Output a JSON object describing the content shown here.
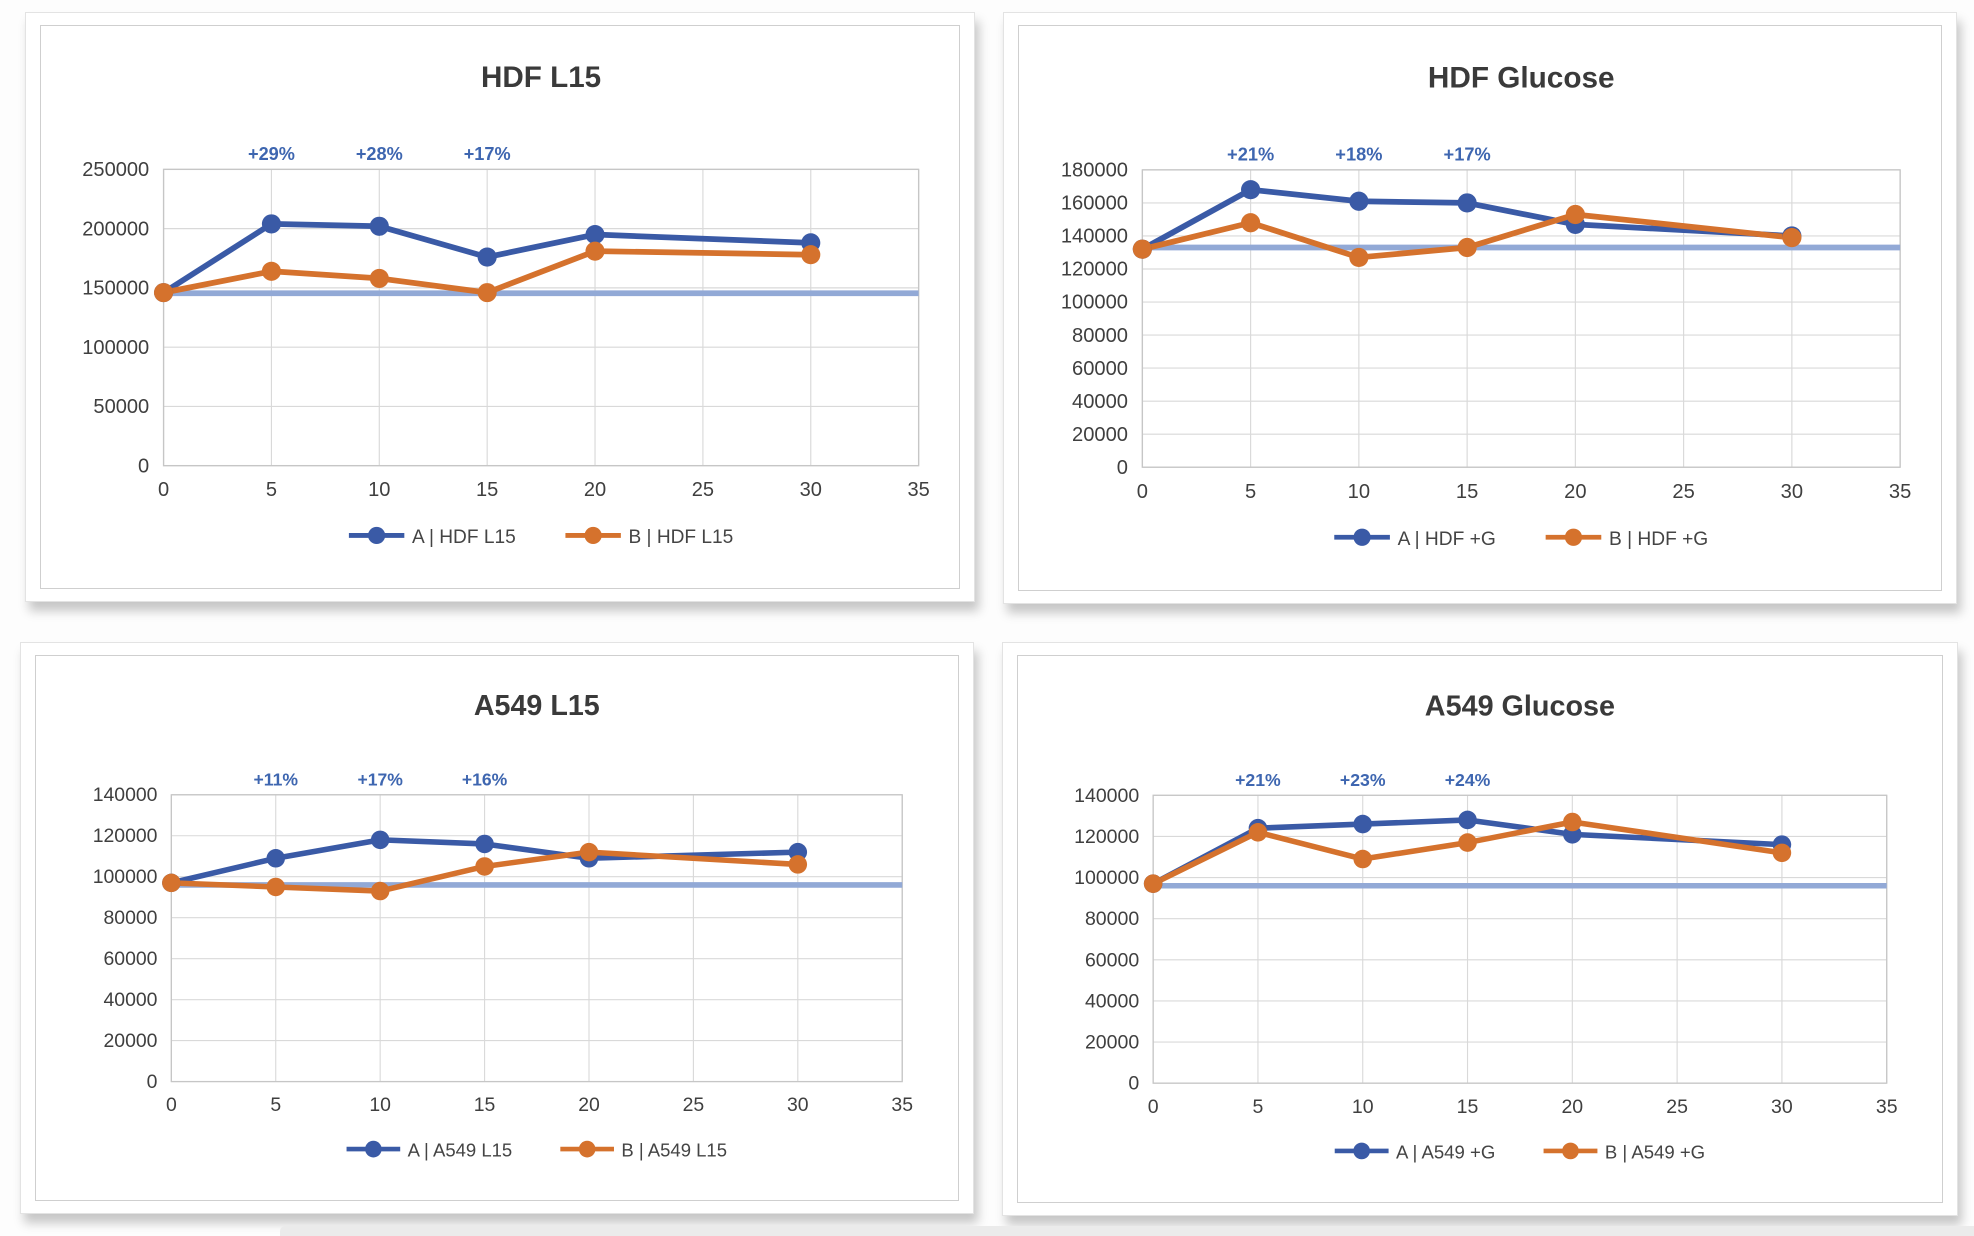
{
  "colors": {
    "series_a": "#3a5aa6",
    "series_b": "#d5722d",
    "baseline": "#92a9d6",
    "annotation": "#3e66b0",
    "title": "#3a3a3a",
    "axis_label": "#3f3f3f",
    "legend_label": "#444444",
    "gridline": "#d9d9d9",
    "plot_border": "#c6c6c6"
  },
  "chart_data": [
    {
      "type": "line",
      "title": "HDF L15",
      "x": [
        0,
        5,
        10,
        15,
        20,
        30
      ],
      "xlim": [
        0,
        35
      ],
      "xtick_step": 5,
      "ylim": [
        0,
        250000
      ],
      "ytick_step": 50000,
      "grid": true,
      "legend_position": "bottom",
      "baseline": 145500,
      "series": [
        {
          "name": "A | HDF L15",
          "color_key": "series_a",
          "values": [
            146000,
            204000,
            202000,
            176000,
            195000,
            188000
          ]
        },
        {
          "name": "B | HDF L15",
          "color_key": "series_b",
          "values": [
            146000,
            164000,
            158000,
            146000,
            181000,
            178000
          ]
        }
      ],
      "annotations": [
        {
          "x": 5,
          "label": "+29%"
        },
        {
          "x": 10,
          "label": "+28%"
        },
        {
          "x": 15,
          "label": "+17%"
        }
      ]
    },
    {
      "type": "line",
      "title": "HDF Glucose",
      "x": [
        0,
        5,
        10,
        15,
        20,
        30
      ],
      "xlim": [
        0,
        35
      ],
      "xtick_step": 5,
      "ylim": [
        0,
        180000
      ],
      "ytick_step": 20000,
      "grid": true,
      "legend_position": "bottom",
      "baseline": 133000,
      "series": [
        {
          "name": "A | HDF +G",
          "color_key": "series_a",
          "values": [
            132000,
            168000,
            161000,
            160000,
            147000,
            140000
          ]
        },
        {
          "name": "B | HDF +G",
          "color_key": "series_b",
          "values": [
            132000,
            148000,
            127000,
            133000,
            153000,
            139000
          ]
        }
      ],
      "annotations": [
        {
          "x": 5,
          "label": "+21%"
        },
        {
          "x": 10,
          "label": "+18%"
        },
        {
          "x": 15,
          "label": "+17%"
        }
      ]
    },
    {
      "type": "line",
      "title": "A549 L15",
      "x": [
        0,
        5,
        10,
        15,
        20,
        30
      ],
      "xlim": [
        0,
        35
      ],
      "xtick_step": 5,
      "ylim": [
        0,
        140000
      ],
      "ytick_step": 20000,
      "grid": true,
      "legend_position": "bottom",
      "baseline": 96000,
      "series": [
        {
          "name": "A | A549 L15",
          "color_key": "series_a",
          "values": [
            97000,
            109000,
            118000,
            116000,
            109000,
            112000
          ]
        },
        {
          "name": "B | A549 L15",
          "color_key": "series_b",
          "values": [
            97000,
            95000,
            93000,
            105000,
            112000,
            106000
          ]
        }
      ],
      "annotations": [
        {
          "x": 5,
          "label": "+11%"
        },
        {
          "x": 10,
          "label": "+17%"
        },
        {
          "x": 15,
          "label": "+16%"
        }
      ]
    },
    {
      "type": "line",
      "title": "A549 Glucose",
      "x": [
        0,
        5,
        10,
        15,
        20,
        30
      ],
      "xlim": [
        0,
        35
      ],
      "xtick_step": 5,
      "ylim": [
        0,
        140000
      ],
      "ytick_step": 20000,
      "grid": true,
      "legend_position": "bottom",
      "baseline": 96000,
      "series": [
        {
          "name": "A | A549 +G",
          "color_key": "series_a",
          "values": [
            97000,
            124000,
            126000,
            128000,
            121000,
            116000
          ]
        },
        {
          "name": "B | A549 +G",
          "color_key": "series_b",
          "values": [
            97000,
            122000,
            109000,
            117000,
            127000,
            112000
          ]
        }
      ],
      "annotations": [
        {
          "x": 5,
          "label": "+21%"
        },
        {
          "x": 10,
          "label": "+23%"
        },
        {
          "x": 15,
          "label": "+24%"
        }
      ]
    }
  ]
}
